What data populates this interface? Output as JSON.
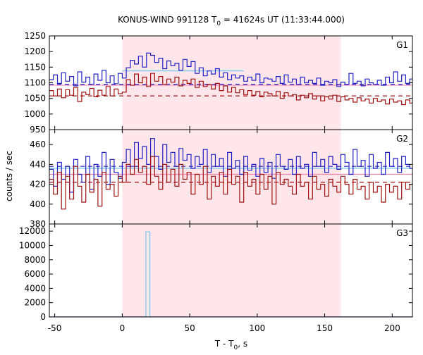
{
  "chart_data": {
    "type": "line",
    "title_main": "KONUS-WIND 991128 T",
    "title_sub": "0",
    "title_rest": " = 41624s UT (11:33:44.000)",
    "xlabel_main": "T - T",
    "xlabel_sub": "0",
    "xlabel_rest": ", s",
    "ylabel": "counts / sec",
    "xlim": [
      -54,
      215
    ],
    "x_ticks": [
      -50,
      0,
      50,
      100,
      150,
      200
    ],
    "shaded_interval": [
      0,
      162
    ],
    "colors": {
      "series_1": "#1f1fc8",
      "series_2": "#a01010",
      "series_3": "#7ec8ec",
      "shade": "#ffe6ea",
      "fit_line": "#f08ab0"
    },
    "panels": [
      {
        "name": "G1",
        "ylim": [
          950,
          1250
        ],
        "y_ticks": [
          950,
          1000,
          1050,
          1100,
          1150,
          1200,
          1250
        ],
        "x_edges": [
          -54,
          -51,
          -48,
          -45,
          -42,
          -39,
          -36,
          -33,
          -30,
          -27,
          -24,
          -21,
          -18,
          -15,
          -12,
          -9,
          -6,
          -3,
          0,
          3,
          6,
          9,
          12,
          15,
          18,
          21,
          24,
          27,
          30,
          33,
          36,
          39,
          42,
          45,
          48,
          51,
          54,
          57,
          60,
          63,
          66,
          69,
          72,
          75,
          78,
          81,
          84,
          87,
          90,
          93,
          96,
          99,
          102,
          105,
          108,
          111,
          114,
          117,
          120,
          123,
          126,
          129,
          132,
          135,
          138,
          141,
          144,
          147,
          150,
          153,
          156,
          159,
          162,
          165,
          168,
          171,
          174,
          177,
          180,
          183,
          186,
          189,
          192,
          195,
          198,
          201,
          204,
          207,
          210,
          213,
          216
        ],
        "series": [
          {
            "color_key": "series_1",
            "values": [
              1110,
              1125,
              1098,
              1132,
              1105,
              1120,
              1090,
              1135,
              1102,
              1118,
              1095,
              1128,
              1108,
              1140,
              1100,
              1122,
              1097,
              1130,
              1115,
              1148,
              1172,
              1160,
              1185,
              1150,
              1195,
              1188,
              1165,
              1178,
              1145,
              1170,
              1155,
              1162,
              1140,
              1175,
              1152,
              1168,
              1130,
              1148,
              1122,
              1138,
              1128,
              1145,
              1118,
              1132,
              1110,
              1125,
              1115,
              1122,
              1105,
              1118,
              1108,
              1128,
              1100,
              1115,
              1112,
              1105,
              1120,
              1098,
              1125,
              1102,
              1112,
              1095,
              1118,
              1100,
              1108,
              1098,
              1115,
              1092,
              1105,
              1100,
              1110,
              1088,
              1102,
              1095,
              1130,
              1098,
              1105,
              1090,
              1112,
              1100,
              1095,
              1108,
              1092,
              1118,
              1100,
              1135,
              1105,
              1125,
              1098,
              1112
            ]
          },
          {
            "color_key": "series_2",
            "values": [
              1075,
              1058,
              1080,
              1052,
              1078,
              1060,
              1085,
              1040,
              1070,
              1062,
              1082,
              1055,
              1076,
              1060,
              1088,
              1058,
              1080,
              1065,
              1070,
              1110,
              1092,
              1128,
              1100,
              1118,
              1088,
              1130,
              1105,
              1120,
              1095,
              1112,
              1102,
              1118,
              1090,
              1108,
              1098,
              1112,
              1085,
              1105,
              1088,
              1095,
              1080,
              1098,
              1075,
              1090,
              1070,
              1085,
              1068,
              1078,
              1062,
              1075,
              1060,
              1072,
              1055,
              1070,
              1065,
              1058,
              1072,
              1050,
              1068,
              1058,
              1062,
              1045,
              1060,
              1052,
              1065,
              1048,
              1058,
              1042,
              1055,
              1048,
              1060,
              1040,
              1055,
              1045,
              1050,
              1038,
              1052,
              1042,
              1048,
              1035,
              1050,
              1040,
              1045,
              1032,
              1048,
              1038,
              1042,
              1030,
              1045,
              1035
            ]
          }
        ],
        "dashed_levels": [
          {
            "color_key": "series_1",
            "value": 1095
          },
          {
            "color_key": "series_2",
            "value": 1058
          }
        ],
        "fit_segments": [
          {
            "color_key": "series_3",
            "x": [
              0,
              90
            ],
            "y": [
              1138,
              1138
            ]
          },
          {
            "color_key": "fit_line",
            "x": [
              -54,
              216
            ],
            "y": [
              1092,
              1092
            ]
          }
        ]
      },
      {
        "name": "G2",
        "ylim": [
          380,
          475
        ],
        "y_ticks": [
          380,
          400,
          420,
          440,
          460
        ],
        "x_edges": [
          -54,
          -51,
          -48,
          -45,
          -42,
          -39,
          -36,
          -33,
          -30,
          -27,
          -24,
          -21,
          -18,
          -15,
          -12,
          -9,
          -6,
          -3,
          0,
          3,
          6,
          9,
          12,
          15,
          18,
          21,
          24,
          27,
          30,
          33,
          36,
          39,
          42,
          45,
          48,
          51,
          54,
          57,
          60,
          63,
          66,
          69,
          72,
          75,
          78,
          81,
          84,
          87,
          90,
          93,
          96,
          99,
          102,
          105,
          108,
          111,
          114,
          117,
          120,
          123,
          126,
          129,
          132,
          135,
          138,
          141,
          144,
          147,
          150,
          153,
          156,
          159,
          162,
          165,
          168,
          171,
          174,
          177,
          180,
          183,
          186,
          189,
          192,
          195,
          198,
          201,
          204,
          207,
          210,
          213,
          216
        ],
        "series": [
          {
            "color_key": "series_1",
            "values": [
              435,
              418,
              442,
              425,
              438,
              412,
              445,
              430,
              422,
              448,
              415,
              440,
              428,
              452,
              420,
              445,
              432,
              426,
              442,
              455,
              438,
              462,
              446,
              458,
              440,
              466,
              448,
              435,
              460,
              442,
              452,
              438,
              456,
              444,
              450,
              436,
              448,
              440,
              455,
              432,
              450,
              438,
              446,
              428,
              452,
              436,
              444,
              430,
              448,
              434,
              440,
              428,
              446,
              432,
              442,
              426,
              450,
              438,
              435,
              445,
              430,
              448,
              436,
              440,
              428,
              452,
              438,
              445,
              432,
              448,
              440,
              435,
              450,
              442,
              430,
              455,
              438,
              444,
              428,
              450,
              436,
              442,
              430,
              452,
              438,
              446,
              432,
              448,
              440,
              436
            ]
          },
          {
            "color_key": "series_2",
            "values": [
              425,
              410,
              432,
              395,
              428,
              405,
              438,
              418,
              402,
              430,
              412,
              425,
              398,
              432,
              415,
              420,
              408,
              428,
              422,
              440,
              430,
              445,
              432,
              438,
              420,
              448,
              428,
              415,
              440,
              422,
              435,
              418,
              440,
              425,
              432,
              410,
              430,
              420,
              438,
              405,
              428,
              418,
              432,
              410,
              435,
              420,
              428,
              402,
              432,
              418,
              425,
              410,
              430,
              415,
              428,
              400,
              432,
              420,
              425,
              418,
              410,
              430,
              418,
              422,
              405,
              428,
              415,
              420,
              408,
              425,
              418,
              412,
              428,
              420,
              410,
              425,
              415,
              418,
              405,
              422,
              412,
              418,
              402,
              420,
              412,
              418,
              405,
              422,
              415,
              420
            ]
          }
        ],
        "dashed_levels": [
          {
            "color_key": "series_1",
            "value": 438
          },
          {
            "color_key": "series_2",
            "value": 422
          }
        ],
        "fit_segments": [
          {
            "color_key": "series_3",
            "x": [
              -54,
              216
            ],
            "y": [
              436,
              436
            ]
          },
          {
            "color_key": "fit_line",
            "x": [
              -54,
              216
            ],
            "y": [
              430,
              430
            ]
          }
        ]
      },
      {
        "name": "G3",
        "ylim": [
          0,
          13000
        ],
        "y_ticks": [
          0,
          2000,
          4000,
          6000,
          8000,
          10000,
          12000
        ],
        "x_edges": [
          -54,
          17.5,
          20.5,
          216
        ],
        "series": [
          {
            "color_key": "series_3",
            "values": [
              0,
              11900,
              0
            ]
          },
          {
            "color_key": "series_1",
            "values": [
              0,
              0,
              0
            ]
          }
        ],
        "dashed_levels": [],
        "fit_segments": []
      }
    ]
  }
}
